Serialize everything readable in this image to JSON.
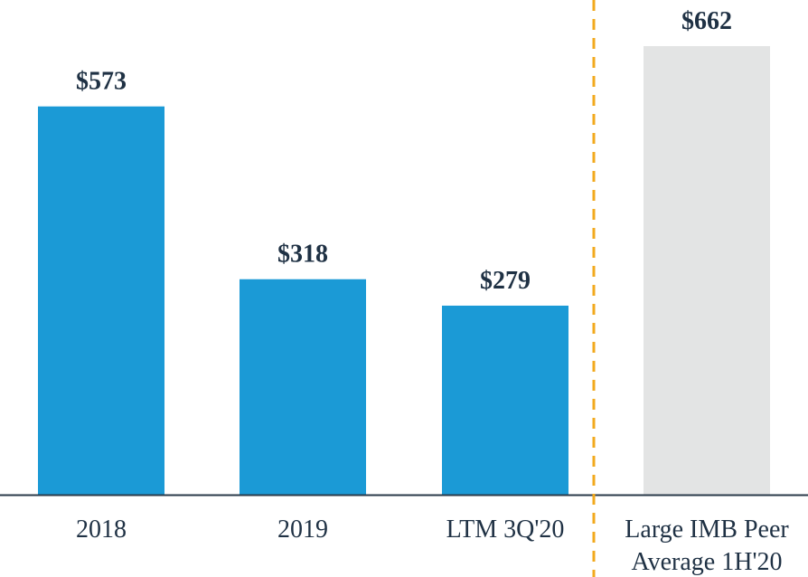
{
  "chart_data": {
    "type": "bar",
    "title": "",
    "xlabel": "",
    "ylabel": "",
    "ylim": [
      0,
      662
    ],
    "categories": [
      [
        "2018"
      ],
      [
        "2019"
      ],
      [
        "LTM 3Q'20"
      ],
      [
        "Large IMB Peer",
        "Average 1H'20"
      ]
    ],
    "values": [
      573,
      318,
      279,
      662
    ],
    "value_labels": [
      "$573",
      "$318",
      "$279",
      "$662"
    ],
    "bar_colors": [
      "#1b9ad6",
      "#1b9ad6",
      "#1b9ad6",
      "#e3e4e4"
    ],
    "separator_after_index": 2,
    "separator_style": "dashed vertical line",
    "colors": {
      "primary_bar": "#1b9ad6",
      "peer_bar": "#e3e4e4",
      "label_text": "#1f3144",
      "axis": "#2a3a4a",
      "separator": "#f2a91d"
    }
  }
}
